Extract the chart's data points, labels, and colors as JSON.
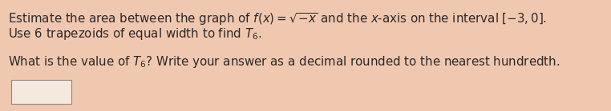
{
  "line1": "Estimate the area between the graph of $f(x) = \\sqrt{-x}$ and the $x$-axis on the interval $[-3, 0]$.",
  "line2": "Use 6 trapezoids of equal width to find $T_6$.",
  "line3": "What is the value of $T_6$? Write your answer as a decimal rounded to the nearest hundredth.",
  "background_color": "#f0c8b0",
  "text_color": "#2a2a2a",
  "font_size": 10.8,
  "figwidth": 7.62,
  "figheight": 1.39
}
